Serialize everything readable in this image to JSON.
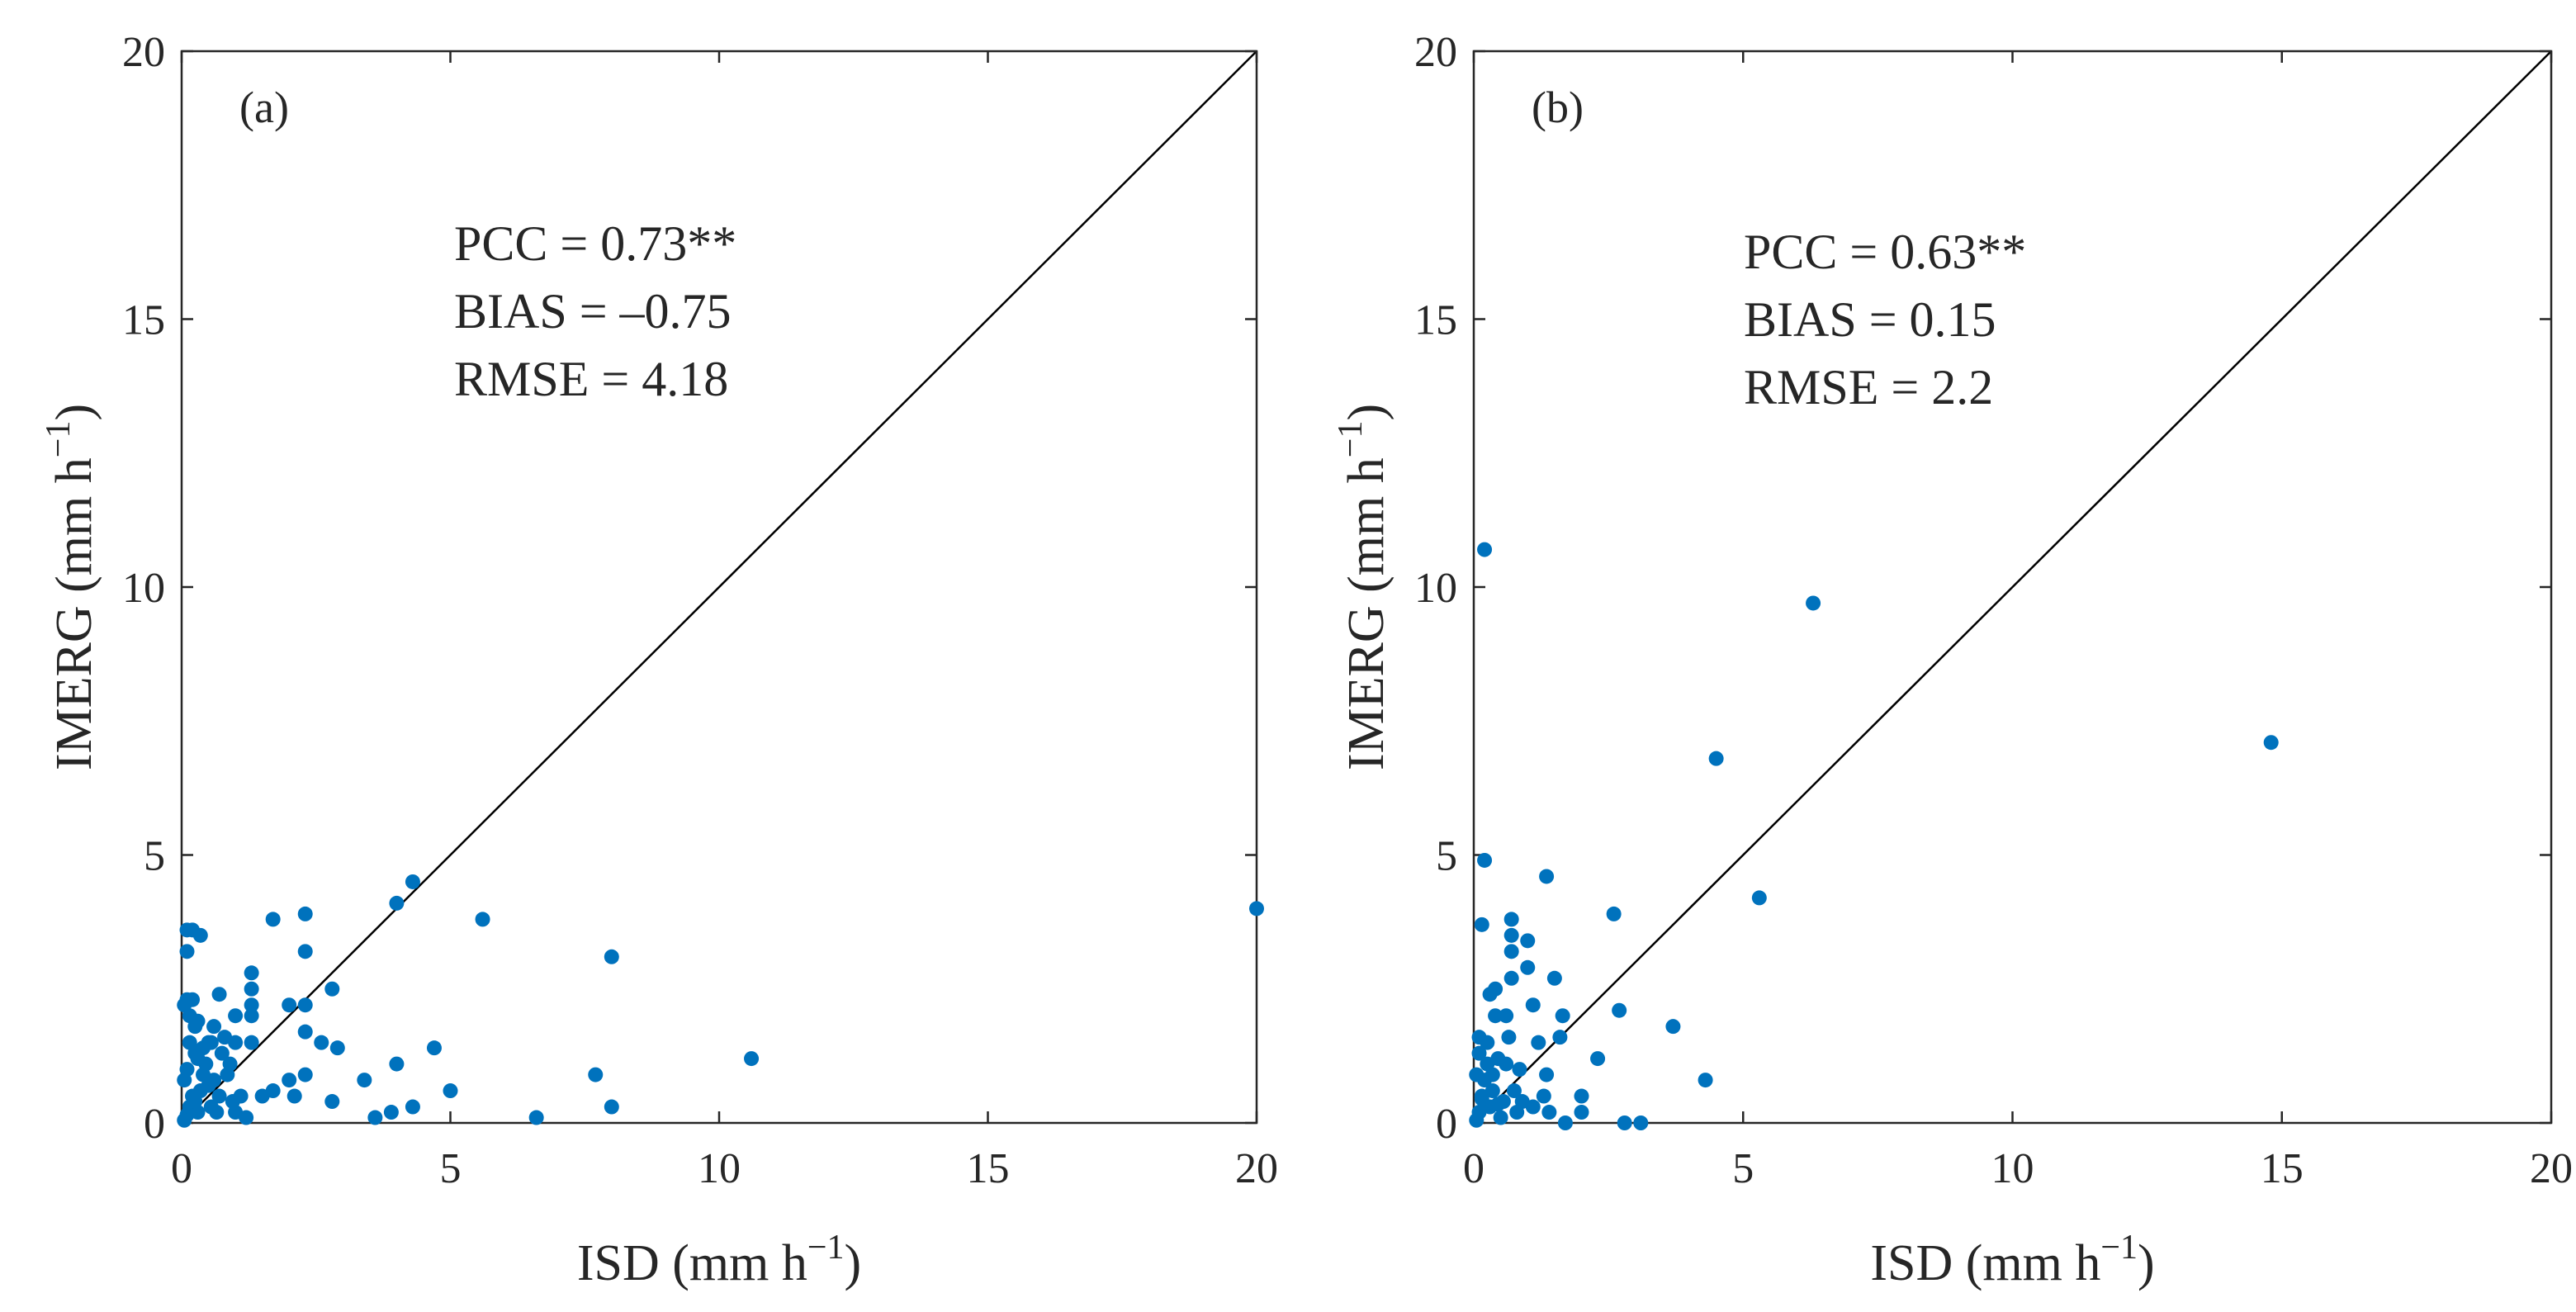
{
  "chart_data": [
    {
      "type": "scatter",
      "panel": "(a)",
      "xlabel": "ISD (mm h",
      "ylabel": "IMERG (mm h",
      "unit_exponent": "−1",
      "xlim": [
        0,
        20
      ],
      "ylim": [
        0,
        20
      ],
      "xticks": [
        "0",
        "5",
        "10",
        "15",
        "20"
      ],
      "yticks": [
        "0",
        "5",
        "10",
        "15",
        "20"
      ],
      "reference_line": "1:1",
      "marker_color": "#0072BD",
      "stats": [
        "PCC = 0.73**",
        "BIAS = –0.75",
        "RMSE = 4.18"
      ],
      "points": [
        [
          0.05,
          0.05
        ],
        [
          0.1,
          0.15
        ],
        [
          0.15,
          0.3
        ],
        [
          0.2,
          0.5
        ],
        [
          0.05,
          0.8
        ],
        [
          0.1,
          1.0
        ],
        [
          0.25,
          1.3
        ],
        [
          0.3,
          0.2
        ],
        [
          0.35,
          0.6
        ],
        [
          0.4,
          0.9
        ],
        [
          0.05,
          2.2
        ],
        [
          0.1,
          2.3
        ],
        [
          0.2,
          2.3
        ],
        [
          0.1,
          3.2
        ],
        [
          0.1,
          3.6
        ],
        [
          0.2,
          3.6
        ],
        [
          0.35,
          3.5
        ],
        [
          0.15,
          1.5
        ],
        [
          0.25,
          1.8
        ],
        [
          0.3,
          1.9
        ],
        [
          0.4,
          1.4
        ],
        [
          0.5,
          0.7
        ],
        [
          0.55,
          0.3
        ],
        [
          0.6,
          0.8
        ],
        [
          0.7,
          0.5
        ],
        [
          0.75,
          1.3
        ],
        [
          0.8,
          1.6
        ],
        [
          0.7,
          2.4
        ],
        [
          0.9,
          1.1
        ],
        [
          1.0,
          0.2
        ],
        [
          1.0,
          1.5
        ],
        [
          1.0,
          2.0
        ],
        [
          1.1,
          0.5
        ],
        [
          1.2,
          0.1
        ],
        [
          1.3,
          1.5
        ],
        [
          1.3,
          2.0
        ],
        [
          1.3,
          2.2
        ],
        [
          1.3,
          2.5
        ],
        [
          1.3,
          2.8
        ],
        [
          1.5,
          0.5
        ],
        [
          1.7,
          0.6
        ],
        [
          1.7,
          3.8
        ],
        [
          2.0,
          2.2
        ],
        [
          2.0,
          0.8
        ],
        [
          2.1,
          0.5
        ],
        [
          2.3,
          0.9
        ],
        [
          2.3,
          1.7
        ],
        [
          2.3,
          2.2
        ],
        [
          2.3,
          3.2
        ],
        [
          2.3,
          3.9
        ],
        [
          2.6,
          1.5
        ],
        [
          2.8,
          2.5
        ],
        [
          2.8,
          0.4
        ],
        [
          2.9,
          1.4
        ],
        [
          3.4,
          0.8
        ],
        [
          3.6,
          0.1
        ],
        [
          3.9,
          0.2
        ],
        [
          4.0,
          1.1
        ],
        [
          4.0,
          4.1
        ],
        [
          4.3,
          0.3
        ],
        [
          4.3,
          4.5
        ],
        [
          4.7,
          1.4
        ],
        [
          5.0,
          0.6
        ],
        [
          5.6,
          3.8
        ],
        [
          6.6,
          0.1
        ],
        [
          7.7,
          0.9
        ],
        [
          8.0,
          3.1
        ],
        [
          8.0,
          0.3
        ],
        [
          10.6,
          1.2
        ],
        [
          20.0,
          4.0
        ],
        [
          0.6,
          1.8
        ],
        [
          0.45,
          1.1
        ],
        [
          0.55,
          1.5
        ],
        [
          0.85,
          0.9
        ],
        [
          0.95,
          0.4
        ],
        [
          0.65,
          0.2
        ],
        [
          0.15,
          2.0
        ],
        [
          0.25,
          0.4
        ],
        [
          0.3,
          1.2
        ],
        [
          0.5,
          1.5
        ]
      ]
    },
    {
      "type": "scatter",
      "panel": "(b)",
      "xlabel": "ISD (mm h",
      "ylabel": "IMERG (mm h",
      "unit_exponent": "−1",
      "xlim": [
        0,
        20
      ],
      "ylim": [
        0,
        20
      ],
      "xticks": [
        "0",
        "5",
        "10",
        "15",
        "20"
      ],
      "yticks": [
        "0",
        "5",
        "10",
        "15",
        "20"
      ],
      "reference_line": "1:1",
      "marker_color": "#0072BD",
      "stats": [
        "PCC = 0.63**",
        "BIAS = 0.15",
        "RMSE = 2.2"
      ],
      "points": [
        [
          0.05,
          0.05
        ],
        [
          0.1,
          0.2
        ],
        [
          0.15,
          0.5
        ],
        [
          0.05,
          0.9
        ],
        [
          0.1,
          1.3
        ],
        [
          0.2,
          0.8
        ],
        [
          0.25,
          1.1
        ],
        [
          0.3,
          0.3
        ],
        [
          0.35,
          0.6
        ],
        [
          0.1,
          1.6
        ],
        [
          0.15,
          3.7
        ],
        [
          0.2,
          10.7
        ],
        [
          0.2,
          4.9
        ],
        [
          0.3,
          2.4
        ],
        [
          0.4,
          2.5
        ],
        [
          0.4,
          2.0
        ],
        [
          0.45,
          1.2
        ],
        [
          0.5,
          0.1
        ],
        [
          0.55,
          0.4
        ],
        [
          0.6,
          2.0
        ],
        [
          0.65,
          1.6
        ],
        [
          0.7,
          2.7
        ],
        [
          0.7,
          3.2
        ],
        [
          0.7,
          3.5
        ],
        [
          0.7,
          3.8
        ],
        [
          0.75,
          0.6
        ],
        [
          0.8,
          0.2
        ],
        [
          0.9,
          0.4
        ],
        [
          1.0,
          2.9
        ],
        [
          1.0,
          3.4
        ],
        [
          1.1,
          0.3
        ],
        [
          1.1,
          2.2
        ],
        [
          1.3,
          0.5
        ],
        [
          1.35,
          0.9
        ],
        [
          1.35,
          4.6
        ],
        [
          1.5,
          2.7
        ],
        [
          1.6,
          1.6
        ],
        [
          1.65,
          2.0
        ],
        [
          1.7,
          0.0
        ],
        [
          2.0,
          0.2
        ],
        [
          2.0,
          0.5
        ],
        [
          2.3,
          1.2
        ],
        [
          2.6,
          3.9
        ],
        [
          2.7,
          2.1
        ],
        [
          2.8,
          0.0
        ],
        [
          3.1,
          0.0
        ],
        [
          3.7,
          1.8
        ],
        [
          4.3,
          0.8
        ],
        [
          4.5,
          6.8
        ],
        [
          5.3,
          4.2
        ],
        [
          6.3,
          9.7
        ],
        [
          14.8,
          7.1
        ],
        [
          0.25,
          1.5
        ],
        [
          0.35,
          0.9
        ],
        [
          0.6,
          1.1
        ],
        [
          0.85,
          1.0
        ],
        [
          1.2,
          1.5
        ],
        [
          1.4,
          0.2
        ],
        [
          0.45,
          0.35
        ],
        [
          0.15,
          0.45
        ]
      ]
    }
  ]
}
